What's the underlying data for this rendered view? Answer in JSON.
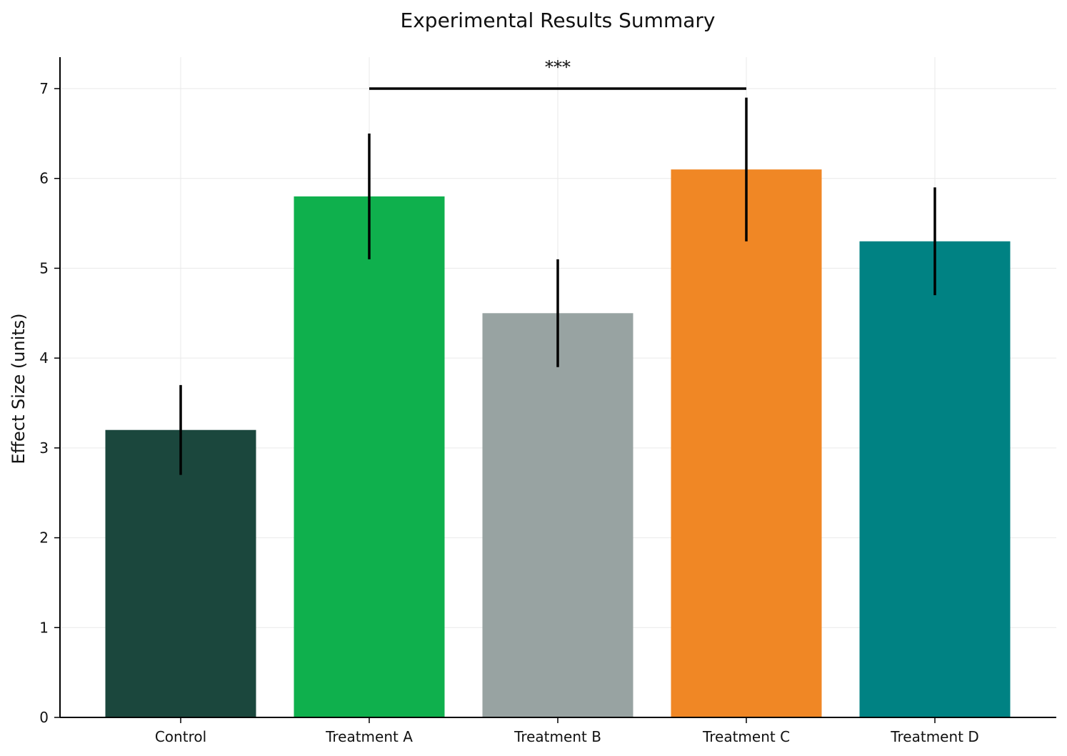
{
  "chart_data": {
    "type": "bar",
    "title": "Experimental Results Summary",
    "xlabel": "",
    "ylabel": "Effect Size (units)",
    "categories": [
      "Control",
      "Treatment A",
      "Treatment B",
      "Treatment C",
      "Treatment D"
    ],
    "values": [
      3.2,
      5.8,
      4.5,
      6.1,
      5.3
    ],
    "error_lower": [
      2.7,
      5.1,
      3.9,
      5.3,
      4.7
    ],
    "error_upper": [
      3.7,
      6.5,
      5.1,
      6.9,
      5.9
    ],
    "colors": [
      "#1b473d",
      "#0fb04d",
      "#98a3a2",
      "#f08725",
      "#008283"
    ],
    "ylim": [
      0,
      7.35
    ],
    "yticks": [
      0,
      1,
      2,
      3,
      4,
      5,
      6,
      7
    ],
    "grid": true,
    "significance": {
      "from_category": "Treatment A",
      "to_category": "Treatment C",
      "y": 7.0,
      "label": "***"
    }
  }
}
